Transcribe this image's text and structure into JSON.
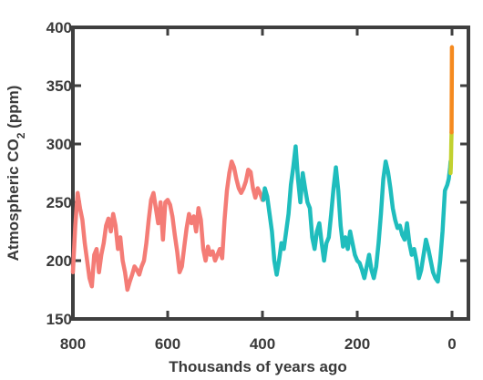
{
  "chart_data": {
    "type": "line",
    "title": "",
    "xlabel": "Thousands of years ago",
    "ylabel": {
      "prefix": "Atmospheric CO",
      "subscript": "2",
      "suffix": " (ppm)"
    },
    "xlim": [
      800,
      0
    ],
    "ylim": [
      150,
      400
    ],
    "xticks": [
      800,
      600,
      400,
      200,
      0
    ],
    "yticks": [
      150,
      200,
      250,
      300,
      350,
      400
    ],
    "grid": false,
    "legend": "none",
    "series": [
      {
        "color": "#f47c76",
        "x": [
          800,
          795,
          790,
          785,
          780,
          775,
          770,
          765,
          760,
          755,
          750,
          745,
          740,
          735,
          730,
          725,
          720,
          715,
          710,
          705,
          700,
          695,
          690,
          685,
          680,
          675,
          670,
          665,
          660,
          655,
          650,
          645,
          640,
          635,
          630,
          625,
          620,
          615,
          610,
          605,
          600,
          595,
          590,
          585,
          580,
          575,
          570,
          565,
          560,
          555,
          550,
          545,
          540,
          535,
          530,
          525,
          520,
          515,
          510,
          505,
          500,
          495,
          490,
          485,
          480,
          475,
          470,
          465,
          460,
          455,
          450,
          445,
          440,
          435,
          430,
          425,
          420,
          415,
          410,
          405,
          400,
          398
        ],
        "y": [
          190,
          230,
          258,
          245,
          235,
          215,
          200,
          185,
          178,
          205,
          210,
          190,
          205,
          215,
          230,
          236,
          225,
          240,
          230,
          210,
          220,
          200,
          190,
          175,
          182,
          188,
          195,
          192,
          188,
          195,
          200,
          215,
          235,
          252,
          258,
          245,
          232,
          250,
          218,
          250,
          252,
          248,
          238,
          222,
          208,
          190,
          195,
          212,
          228,
          240,
          232,
          238,
          225,
          245,
          235,
          210,
          200,
          212,
          205,
          208,
          200,
          205,
          210,
          202,
          235,
          260,
          275,
          285,
          280,
          270,
          262,
          258,
          262,
          268,
          278,
          276,
          262,
          254,
          262,
          258,
          252,
          252
        ]
      },
      {
        "color": "#1fbdbd",
        "x": [
          398,
          395,
          390,
          385,
          380,
          375,
          370,
          365,
          360,
          355,
          350,
          345,
          340,
          335,
          330,
          325,
          320,
          315,
          310,
          305,
          300,
          295,
          290,
          285,
          280,
          275,
          270,
          265,
          260,
          255,
          250,
          245,
          240,
          235,
          230,
          225,
          220,
          215,
          210,
          205,
          200,
          195,
          190,
          185,
          180,
          175,
          170,
          165,
          160,
          155,
          150,
          145,
          140,
          135,
          130,
          125,
          120,
          115,
          110,
          105,
          100,
          95,
          90,
          85,
          80,
          75,
          70,
          65,
          60,
          55,
          50,
          45,
          40,
          35,
          30,
          25,
          20,
          15,
          10,
          7,
          4,
          3
        ],
        "y": [
          252,
          262,
          255,
          240,
          225,
          200,
          188,
          200,
          215,
          210,
          225,
          240,
          265,
          280,
          298,
          270,
          250,
          275,
          262,
          250,
          245,
          220,
          210,
          225,
          232,
          215,
          200,
          215,
          220,
          240,
          262,
          280,
          260,
          230,
          212,
          220,
          210,
          225,
          215,
          205,
          200,
          198,
          192,
          185,
          195,
          205,
          192,
          185,
          195,
          215,
          240,
          270,
          285,
          276,
          262,
          245,
          235,
          228,
          230,
          222,
          218,
          232,
          215,
          205,
          210,
          200,
          185,
          192,
          205,
          218,
          210,
          200,
          190,
          185,
          182,
          200,
          225,
          260,
          265,
          270,
          280,
          285
        ]
      },
      {
        "color": "#c2d12f",
        "x": [
          3,
          2.5,
          2,
          1.5,
          1
        ],
        "y": [
          275,
          280,
          290,
          300,
          310
        ]
      },
      {
        "color": "#f58a1f",
        "x": [
          1,
          0.7,
          0.4,
          0.1
        ],
        "y": [
          310,
          330,
          360,
          383
        ]
      }
    ]
  }
}
